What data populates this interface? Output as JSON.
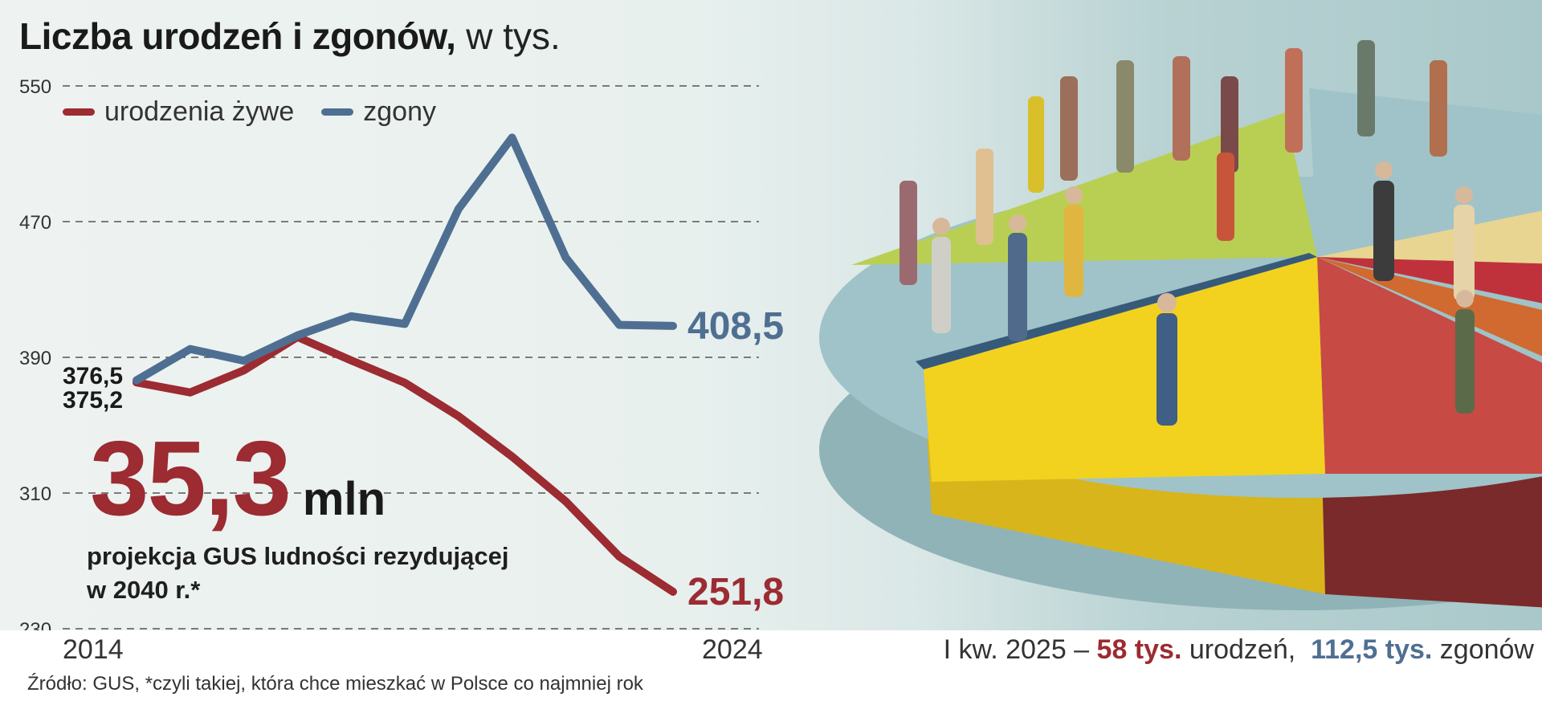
{
  "title": {
    "main": "Liczba urodzeń i zgonów,",
    "unit": "w tys."
  },
  "colors": {
    "births": "#9c2b32",
    "deaths": "#4f6f92"
  },
  "legend": [
    {
      "label": "urodzenia żywe",
      "color": "#9c2b32"
    },
    {
      "label": "zgony",
      "color": "#4f6f92"
    }
  ],
  "chart_data": {
    "type": "line",
    "title": "Liczba urodzeń i zgonów, w tys.",
    "x": [
      2014,
      2015,
      2016,
      2017,
      2018,
      2019,
      2020,
      2021,
      2022,
      2023,
      2024
    ],
    "x_tick_labels": [
      "2014",
      "2024"
    ],
    "yticks": [
      550,
      470,
      390,
      310,
      230
    ],
    "ylim": [
      230,
      550
    ],
    "grid": true,
    "legend_position": "top-left",
    "series": [
      {
        "name": "urodzenia żywe",
        "color": "#9c2b32",
        "values": [
          375.2,
          369.3,
          382.3,
          402.0,
          388.2,
          375.0,
          355.3,
          331.5,
          305.1,
          272.5,
          251.8
        ],
        "start_label": "375,2",
        "end_label": "251,8"
      },
      {
        "name": "zgony",
        "color": "#4f6f92",
        "values": [
          376.5,
          394.9,
          388.0,
          402.9,
          414.2,
          409.7,
          477.4,
          519.5,
          448.8,
          409.1,
          408.5
        ],
        "start_label": "376,5",
        "end_label": "408,5"
      }
    ]
  },
  "highlight": {
    "value": "35,3",
    "unit": "mln",
    "line1": "projekcja GUS ludności rezydującej",
    "line2": "w 2040 r.*"
  },
  "quarter": {
    "prefix": "I kw. 2025 –",
    "births_value": "58 tys.",
    "births_text": "urodzeń,",
    "deaths_value": "112,5 tys.",
    "deaths_text": "zgonów"
  },
  "source": "Źródło: GUS, *czyli takiej, która chce mieszkać w Polsce co najmniej rok"
}
